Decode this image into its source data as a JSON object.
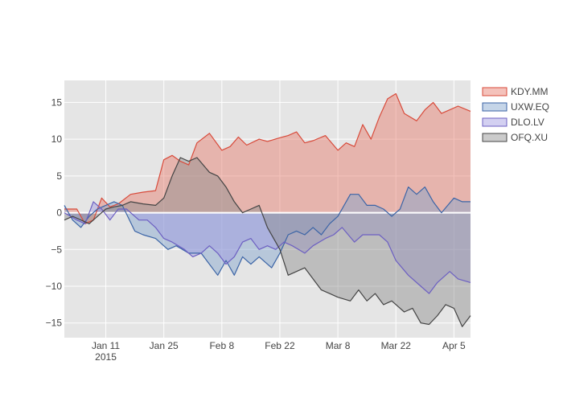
{
  "chart_data": {
    "type": "area",
    "fill": "tozeroy",
    "x_start": "2015-01-01",
    "x_end": "2015-04-09",
    "xlim": [
      "2015-01-01",
      "2015-04-09"
    ],
    "ylim": [
      -17,
      18
    ],
    "grid": true,
    "legend_position": "top-right",
    "x_ticks": [
      {
        "date": "2015-01-11",
        "label": "Jan 11",
        "sublabel": "2015"
      },
      {
        "date": "2015-01-25",
        "label": "Jan 25",
        "sublabel": ""
      },
      {
        "date": "2015-02-08",
        "label": "Feb 8",
        "sublabel": ""
      },
      {
        "date": "2015-02-22",
        "label": "Feb 22",
        "sublabel": ""
      },
      {
        "date": "2015-03-08",
        "label": "Mar 8",
        "sublabel": ""
      },
      {
        "date": "2015-03-22",
        "label": "Mar 22",
        "sublabel": ""
      },
      {
        "date": "2015-04-05",
        "label": "Apr 5",
        "sublabel": ""
      }
    ],
    "y_ticks": [
      {
        "value": 15,
        "label": "15"
      },
      {
        "value": 10,
        "label": "10"
      },
      {
        "value": 5,
        "label": "5"
      },
      {
        "value": 0,
        "label": "0"
      },
      {
        "value": -5,
        "label": "−5"
      },
      {
        "value": -10,
        "label": "−10"
      },
      {
        "value": -15,
        "label": "−15"
      }
    ],
    "series": [
      {
        "name": "KDY.MM",
        "color": "#d84a3a",
        "fill": "rgba(231,120,104,0.45)",
        "points": [
          [
            "2015-01-01",
            0.5
          ],
          [
            "2015-01-04",
            0.5
          ],
          [
            "2015-01-06",
            -1.5
          ],
          [
            "2015-01-08",
            -1.0
          ],
          [
            "2015-01-10",
            2.0
          ],
          [
            "2015-01-12",
            0.8
          ],
          [
            "2015-01-14",
            1.2
          ],
          [
            "2015-01-17",
            2.5
          ],
          [
            "2015-01-20",
            2.8
          ],
          [
            "2015-01-23",
            3.0
          ],
          [
            "2015-01-25",
            7.2
          ],
          [
            "2015-01-27",
            7.8
          ],
          [
            "2015-01-29",
            7.0
          ],
          [
            "2015-01-31",
            6.5
          ],
          [
            "2015-02-02",
            9.5
          ],
          [
            "2015-02-05",
            10.8
          ],
          [
            "2015-02-08",
            8.5
          ],
          [
            "2015-02-10",
            9.0
          ],
          [
            "2015-02-12",
            10.3
          ],
          [
            "2015-02-14",
            9.2
          ],
          [
            "2015-02-17",
            10.0
          ],
          [
            "2015-02-19",
            9.7
          ],
          [
            "2015-02-22",
            10.2
          ],
          [
            "2015-02-24",
            10.5
          ],
          [
            "2015-02-26",
            11.0
          ],
          [
            "2015-02-28",
            9.5
          ],
          [
            "2015-03-02",
            9.8
          ],
          [
            "2015-03-05",
            10.5
          ],
          [
            "2015-03-08",
            8.5
          ],
          [
            "2015-03-10",
            9.5
          ],
          [
            "2015-03-12",
            9.0
          ],
          [
            "2015-03-14",
            12.0
          ],
          [
            "2015-03-16",
            10.0
          ],
          [
            "2015-03-18",
            13.0
          ],
          [
            "2015-03-20",
            15.5
          ],
          [
            "2015-03-22",
            16.2
          ],
          [
            "2015-03-24",
            13.5
          ],
          [
            "2015-03-27",
            12.5
          ],
          [
            "2015-03-29",
            14.0
          ],
          [
            "2015-03-31",
            15.0
          ],
          [
            "2015-04-02",
            13.5
          ],
          [
            "2015-04-04",
            14.0
          ],
          [
            "2015-04-06",
            14.5
          ],
          [
            "2015-04-09",
            13.8
          ]
        ]
      },
      {
        "name": "UXW.EQ",
        "color": "#3b64a6",
        "fill": "rgba(126,162,204,0.45)",
        "points": [
          [
            "2015-01-01",
            1.0
          ],
          [
            "2015-01-03",
            -1.0
          ],
          [
            "2015-01-05",
            -2.0
          ],
          [
            "2015-01-07",
            -0.5
          ],
          [
            "2015-01-09",
            0.5
          ],
          [
            "2015-01-11",
            1.0
          ],
          [
            "2015-01-13",
            1.5
          ],
          [
            "2015-01-15",
            1.0
          ],
          [
            "2015-01-18",
            -2.5
          ],
          [
            "2015-01-20",
            -3.0
          ],
          [
            "2015-01-23",
            -3.5
          ],
          [
            "2015-01-26",
            -5.0
          ],
          [
            "2015-01-28",
            -4.5
          ],
          [
            "2015-01-31",
            -5.5
          ],
          [
            "2015-02-03",
            -5.5
          ],
          [
            "2015-02-05",
            -7.0
          ],
          [
            "2015-02-07",
            -8.5
          ],
          [
            "2015-02-09",
            -6.5
          ],
          [
            "2015-02-11",
            -8.5
          ],
          [
            "2015-02-13",
            -6.0
          ],
          [
            "2015-02-15",
            -7.0
          ],
          [
            "2015-02-17",
            -6.0
          ],
          [
            "2015-02-20",
            -7.5
          ],
          [
            "2015-02-22",
            -5.5
          ],
          [
            "2015-02-24",
            -3.0
          ],
          [
            "2015-02-26",
            -2.5
          ],
          [
            "2015-02-28",
            -3.0
          ],
          [
            "2015-03-02",
            -2.0
          ],
          [
            "2015-03-04",
            -3.0
          ],
          [
            "2015-03-06",
            -1.5
          ],
          [
            "2015-03-08",
            -0.5
          ],
          [
            "2015-03-11",
            2.5
          ],
          [
            "2015-03-13",
            2.5
          ],
          [
            "2015-03-15",
            1.0
          ],
          [
            "2015-03-17",
            1.0
          ],
          [
            "2015-03-19",
            0.5
          ],
          [
            "2015-03-21",
            -0.5
          ],
          [
            "2015-03-23",
            0.5
          ],
          [
            "2015-03-25",
            3.5
          ],
          [
            "2015-03-27",
            2.5
          ],
          [
            "2015-03-29",
            3.5
          ],
          [
            "2015-03-31",
            1.5
          ],
          [
            "2015-04-02",
            0.0
          ],
          [
            "2015-04-05",
            2.0
          ],
          [
            "2015-04-07",
            1.5
          ],
          [
            "2015-04-09",
            1.5
          ]
        ]
      },
      {
        "name": "DLO.LV",
        "color": "#6c5fc2",
        "fill": "rgba(158,150,224,0.45)",
        "points": [
          [
            "2015-01-01",
            0.0
          ],
          [
            "2015-01-04",
            -1.0
          ],
          [
            "2015-01-06",
            -1.5
          ],
          [
            "2015-01-08",
            1.5
          ],
          [
            "2015-01-10",
            0.5
          ],
          [
            "2015-01-12",
            -1.0
          ],
          [
            "2015-01-14",
            0.5
          ],
          [
            "2015-01-16",
            0.5
          ],
          [
            "2015-01-19",
            -1.0
          ],
          [
            "2015-01-21",
            -1.0
          ],
          [
            "2015-01-23",
            -2.0
          ],
          [
            "2015-01-25",
            -3.5
          ],
          [
            "2015-01-27",
            -4.0
          ],
          [
            "2015-01-30",
            -5.0
          ],
          [
            "2015-02-01",
            -6.0
          ],
          [
            "2015-02-03",
            -5.5
          ],
          [
            "2015-02-05",
            -4.5
          ],
          [
            "2015-02-07",
            -5.5
          ],
          [
            "2015-02-09",
            -7.0
          ],
          [
            "2015-02-11",
            -6.0
          ],
          [
            "2015-02-13",
            -4.0
          ],
          [
            "2015-02-15",
            -3.5
          ],
          [
            "2015-02-17",
            -5.0
          ],
          [
            "2015-02-19",
            -4.5
          ],
          [
            "2015-02-21",
            -5.0
          ],
          [
            "2015-02-23",
            -4.0
          ],
          [
            "2015-02-25",
            -4.5
          ],
          [
            "2015-02-28",
            -5.5
          ],
          [
            "2015-03-02",
            -4.5
          ],
          [
            "2015-03-05",
            -3.5
          ],
          [
            "2015-03-07",
            -3.0
          ],
          [
            "2015-03-09",
            -2.0
          ],
          [
            "2015-03-12",
            -4.0
          ],
          [
            "2015-03-14",
            -3.0
          ],
          [
            "2015-03-16",
            -3.0
          ],
          [
            "2015-03-18",
            -3.0
          ],
          [
            "2015-03-20",
            -4.0
          ],
          [
            "2015-03-22",
            -6.5
          ],
          [
            "2015-03-25",
            -8.5
          ],
          [
            "2015-03-28",
            -10.0
          ],
          [
            "2015-03-30",
            -11.0
          ],
          [
            "2015-04-01",
            -9.5
          ],
          [
            "2015-04-04",
            -8.0
          ],
          [
            "2015-04-06",
            -9.0
          ],
          [
            "2015-04-09",
            -9.5
          ]
        ]
      },
      {
        "name": "OFQ.XU",
        "color": "#444444",
        "fill": "rgba(140,140,140,0.45)",
        "points": [
          [
            "2015-01-01",
            -1.0
          ],
          [
            "2015-01-03",
            -0.5
          ],
          [
            "2015-01-05",
            -1.0
          ],
          [
            "2015-01-07",
            -1.5
          ],
          [
            "2015-01-09",
            -0.5
          ],
          [
            "2015-01-11",
            0.5
          ],
          [
            "2015-01-13",
            0.8
          ],
          [
            "2015-01-15",
            1.0
          ],
          [
            "2015-01-17",
            1.5
          ],
          [
            "2015-01-20",
            1.2
          ],
          [
            "2015-01-23",
            1.0
          ],
          [
            "2015-01-25",
            2.0
          ],
          [
            "2015-01-27",
            5.0
          ],
          [
            "2015-01-29",
            7.5
          ],
          [
            "2015-01-31",
            7.0
          ],
          [
            "2015-02-02",
            7.5
          ],
          [
            "2015-02-05",
            5.5
          ],
          [
            "2015-02-07",
            5.0
          ],
          [
            "2015-02-09",
            3.5
          ],
          [
            "2015-02-11",
            1.5
          ],
          [
            "2015-02-13",
            0.0
          ],
          [
            "2015-02-15",
            0.5
          ],
          [
            "2015-02-17",
            1.0
          ],
          [
            "2015-02-19",
            -2.0
          ],
          [
            "2015-02-22",
            -5.0
          ],
          [
            "2015-02-24",
            -8.5
          ],
          [
            "2015-02-26",
            -8.0
          ],
          [
            "2015-02-28",
            -7.5
          ],
          [
            "2015-03-02",
            -9.0
          ],
          [
            "2015-03-04",
            -10.5
          ],
          [
            "2015-03-06",
            -11.0
          ],
          [
            "2015-03-08",
            -11.5
          ],
          [
            "2015-03-11",
            -12.0
          ],
          [
            "2015-03-13",
            -10.5
          ],
          [
            "2015-03-15",
            -12.0
          ],
          [
            "2015-03-17",
            -11.0
          ],
          [
            "2015-03-19",
            -12.5
          ],
          [
            "2015-03-21",
            -12.0
          ],
          [
            "2015-03-24",
            -13.5
          ],
          [
            "2015-03-26",
            -13.0
          ],
          [
            "2015-03-28",
            -15.0
          ],
          [
            "2015-03-30",
            -15.2
          ],
          [
            "2015-04-01",
            -14.0
          ],
          [
            "2015-04-03",
            -12.5
          ],
          [
            "2015-04-05",
            -13.0
          ],
          [
            "2015-04-07",
            -15.5
          ],
          [
            "2015-04-09",
            -14.0
          ]
        ]
      }
    ]
  }
}
